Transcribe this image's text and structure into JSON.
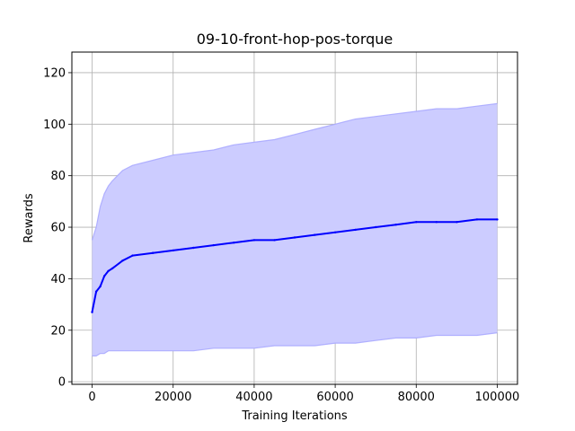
{
  "chart_data": {
    "type": "line",
    "title": "09-10-front-hop-pos-torque",
    "xlabel": "Training Iterations",
    "ylabel": "Rewards",
    "xlim": [
      -5000,
      105000
    ],
    "ylim": [
      -1,
      128
    ],
    "xticks": [
      0,
      20000,
      40000,
      60000,
      80000,
      100000
    ],
    "xtick_labels": [
      "0",
      "20000",
      "40000",
      "60000",
      "80000",
      "100000"
    ],
    "yticks": [
      0,
      20,
      40,
      60,
      80,
      100,
      120
    ],
    "ytick_labels": [
      "0",
      "20",
      "40",
      "60",
      "80",
      "100",
      "120"
    ],
    "grid": true,
    "legend": "none",
    "colors": {
      "mean": "#0000ff",
      "band": "#ccccff",
      "bound": "#aaaaff"
    },
    "x": [
      0,
      1000,
      2000,
      3000,
      4000,
      5000,
      7500,
      10000,
      15000,
      20000,
      25000,
      30000,
      35000,
      40000,
      45000,
      50000,
      55000,
      60000,
      65000,
      70000,
      75000,
      80000,
      85000,
      90000,
      95000,
      100000
    ],
    "series": [
      {
        "role": "mean",
        "values": [
          27,
          35,
          37,
          41,
          43,
          44,
          47,
          49,
          50,
          51,
          52,
          53,
          54,
          55,
          55,
          56,
          57,
          58,
          59,
          60,
          61,
          62,
          62,
          62,
          63,
          63
        ]
      },
      {
        "role": "upper",
        "values": [
          55,
          60,
          68,
          73,
          76,
          78,
          82,
          84,
          86,
          88,
          89,
          90,
          92,
          93,
          94,
          96,
          98,
          100,
          102,
          103,
          104,
          105,
          106,
          106,
          107,
          108
        ]
      },
      {
        "role": "lower",
        "values": [
          10,
          10,
          11,
          11,
          12,
          12,
          12,
          12,
          12,
          12,
          12,
          13,
          13,
          13,
          14,
          14,
          14,
          15,
          15,
          16,
          17,
          17,
          18,
          18,
          18,
          19
        ]
      }
    ]
  }
}
